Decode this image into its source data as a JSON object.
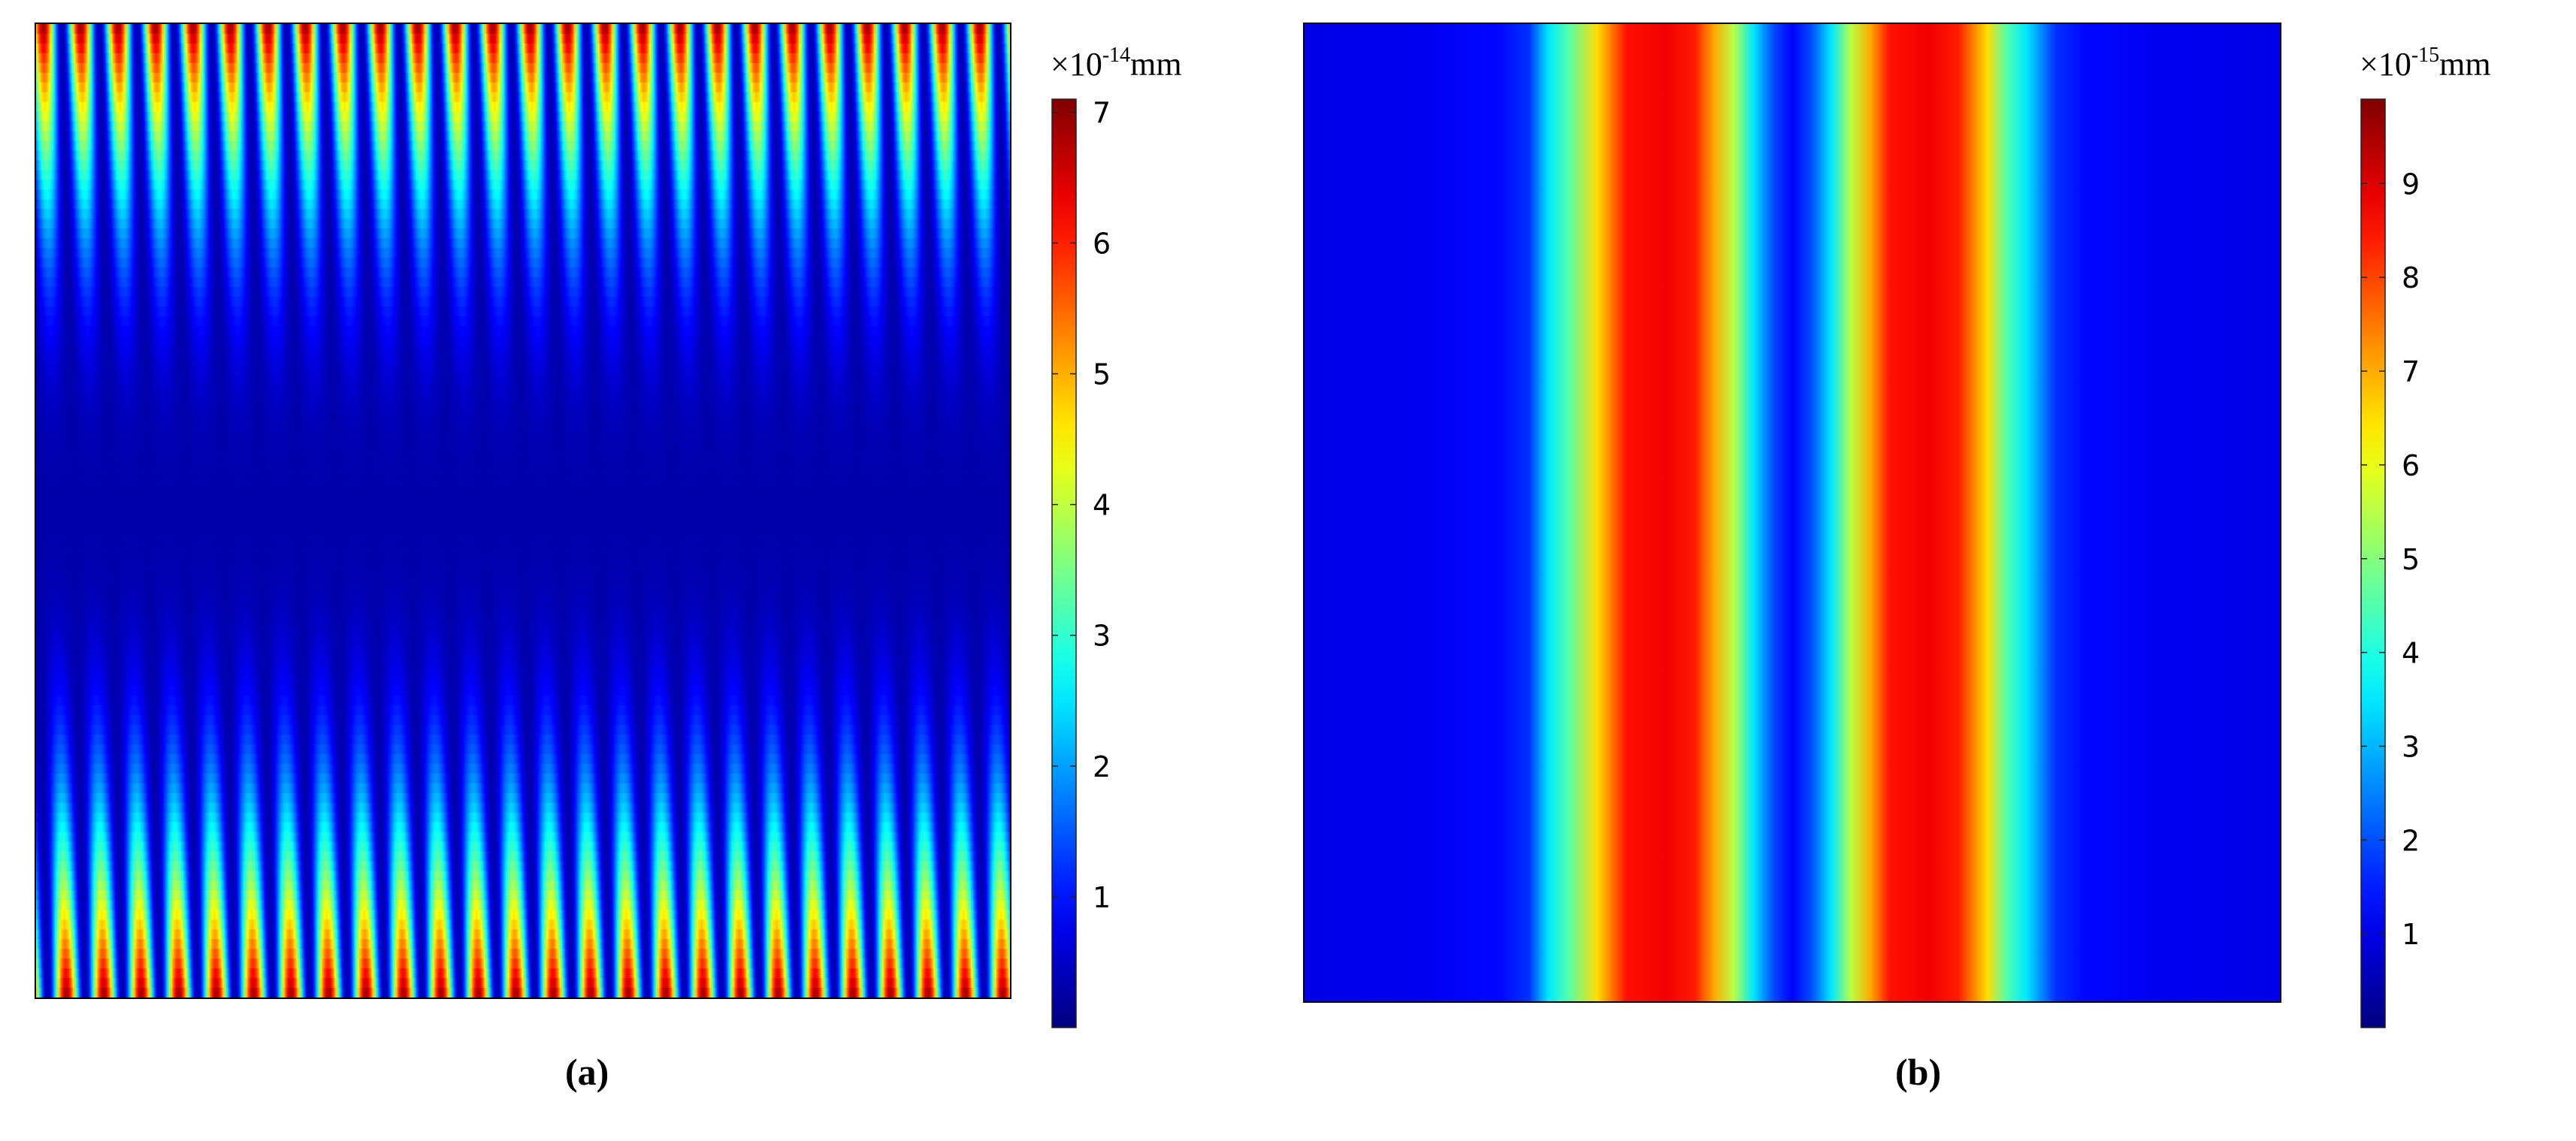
{
  "chart_data": [
    {
      "type": "heatmap",
      "panel_label": "(a)",
      "colormap": "jet",
      "colormap_colors": [
        "#00008f",
        "#0000ff",
        "#00ffff",
        "#ffff00",
        "#ff0000",
        "#800000"
      ],
      "colorbar": {
        "unit_prefix": "×10",
        "unit_exponent": "-14",
        "unit": "mm",
        "min": 0,
        "max": 7.1,
        "ticks": [
          "1",
          "2",
          "3",
          "4",
          "5",
          "6",
          "7"
        ],
        "tick_values": [
          1,
          2,
          3,
          4,
          5,
          6,
          7
        ]
      },
      "pattern": {
        "description_free_field": false,
        "cycles_across": 26,
        "top_edge_value": 7.0,
        "center_value": 0.3,
        "bottom_edge_value": 7.0,
        "zigzag_tilt_top_bottom": 0.012
      }
    },
    {
      "type": "heatmap",
      "panel_label": "(b)",
      "colormap": "jet",
      "colormap_colors": [
        "#00008f",
        "#0000ff",
        "#00ffff",
        "#ffff00",
        "#ff0000",
        "#800000"
      ],
      "colorbar": {
        "unit_prefix": "×10",
        "unit_exponent": "-15",
        "unit": "mm",
        "min": 0,
        "max": 9.9,
        "ticks": [
          "1",
          "2",
          "3",
          "4",
          "5",
          "6",
          "7",
          "8",
          "9"
        ],
        "tick_values": [
          1,
          2,
          3,
          4,
          5,
          6,
          7,
          8,
          9
        ]
      },
      "profile_x": [
        0.0,
        0.12,
        0.2,
        0.23,
        0.25,
        0.27,
        0.3,
        0.33,
        0.37,
        0.4,
        0.42,
        0.44,
        0.46,
        0.48,
        0.5,
        0.52,
        0.54,
        0.56,
        0.58,
        0.6,
        0.64,
        0.67,
        0.7,
        0.72,
        0.74,
        0.77,
        0.8,
        0.88,
        1.0
      ],
      "profile_values": [
        1.0,
        1.1,
        1.3,
        1.7,
        3.5,
        4.5,
        6.5,
        8.5,
        8.8,
        8.4,
        7.0,
        5.5,
        3.5,
        2.0,
        1.2,
        2.0,
        3.5,
        5.5,
        7.0,
        8.5,
        8.8,
        8.4,
        6.5,
        4.5,
        3.5,
        1.7,
        1.3,
        1.1,
        1.0
      ]
    }
  ]
}
